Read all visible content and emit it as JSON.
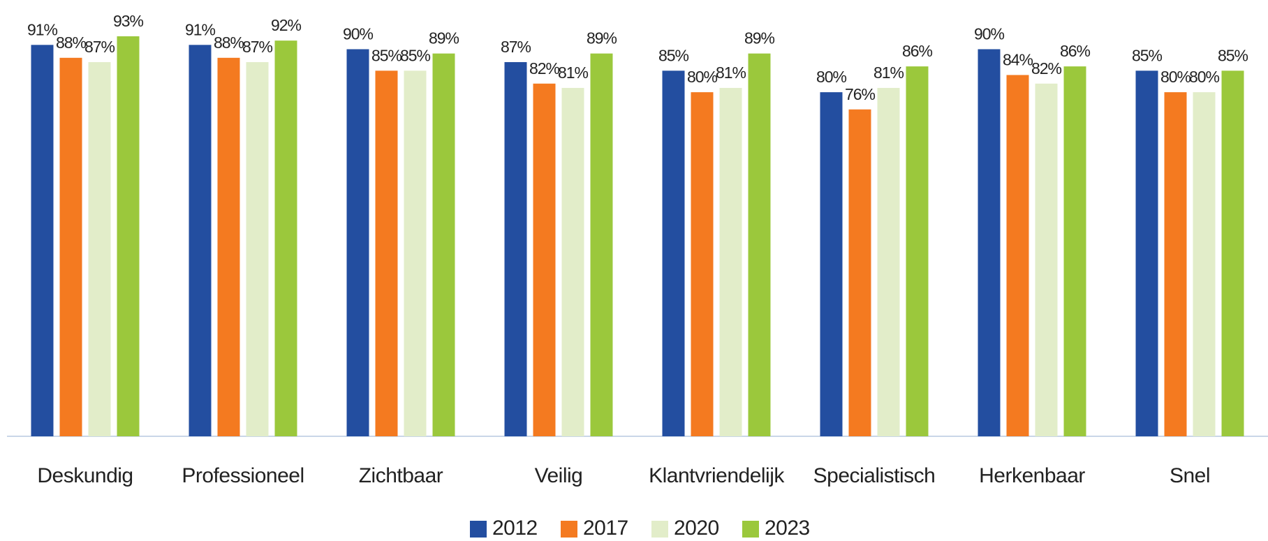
{
  "chart_data": {
    "type": "bar",
    "categories": [
      "Deskundig",
      "Professioneel",
      "Zichtbaar",
      "Veilig",
      "Klantvriendelijk",
      "Specialistisch",
      "Herkenbaar",
      "Snel"
    ],
    "series": [
      {
        "name": "2012",
        "color": "#234ea0",
        "values": [
          91,
          91,
          90,
          87,
          85,
          80,
          90,
          85
        ],
        "value_labels": [
          "91%",
          "91%",
          "90%",
          "87%",
          "85%",
          "80%",
          "90%",
          "85%"
        ]
      },
      {
        "name": "2017",
        "color": "#f47a20",
        "values": [
          88,
          88,
          85,
          82,
          80,
          76,
          84,
          80
        ],
        "value_labels": [
          "88%",
          "88%",
          "85%",
          "82%",
          "80%",
          "76%",
          "84%",
          "80%"
        ]
      },
      {
        "name": "2020",
        "color": "#e2edc9",
        "values": [
          87,
          87,
          85,
          81,
          81,
          81,
          82,
          80
        ],
        "value_labels": [
          "87%",
          "87%",
          "85%",
          "81%",
          "81%",
          "81%",
          "82%",
          "80%"
        ]
      },
      {
        "name": "2023",
        "color": "#9bc83c",
        "values": [
          93,
          92,
          89,
          89,
          89,
          86,
          86,
          85
        ],
        "value_labels": [
          "93%",
          "92%",
          "89%",
          "89%",
          "89%",
          "86%",
          "86%",
          "85%"
        ]
      }
    ],
    "legend": "bottom"
  }
}
